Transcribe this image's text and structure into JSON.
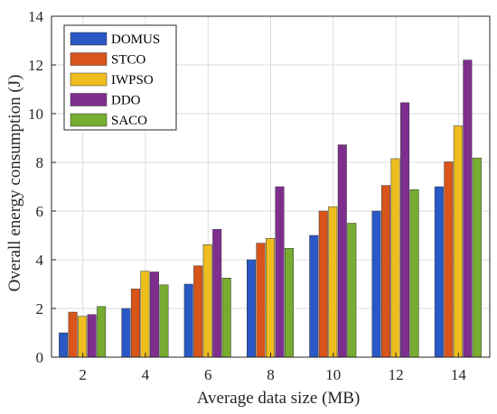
{
  "chart_data": {
    "type": "bar",
    "xlabel": "Average data size (MB)",
    "ylabel": "Overall energy consumption (J)",
    "categories": [
      "2",
      "4",
      "6",
      "8",
      "10",
      "12",
      "14"
    ],
    "ylim": [
      0,
      14
    ],
    "yticks": [
      "0",
      "2",
      "4",
      "6",
      "8",
      "10",
      "12",
      "14"
    ],
    "grid": true,
    "legend_position": "top-left",
    "series": [
      {
        "name": "DOMUS",
        "color": "#2a58c4",
        "values": [
          1.0,
          2.0,
          3.0,
          4.0,
          5.0,
          6.0,
          7.0
        ]
      },
      {
        "name": "STCO",
        "color": "#d9541a",
        "values": [
          1.85,
          2.8,
          3.75,
          4.68,
          6.0,
          7.05,
          8.02
        ]
      },
      {
        "name": "IWPSO",
        "color": "#eebd1e",
        "values": [
          1.68,
          3.53,
          4.62,
          4.88,
          6.18,
          8.15,
          9.5
        ]
      },
      {
        "name": "DDO",
        "color": "#7e2f8e",
        "values": [
          1.75,
          3.5,
          5.25,
          7.0,
          8.72,
          10.45,
          12.2
        ]
      },
      {
        "name": "SACO",
        "color": "#77ac30",
        "values": [
          2.08,
          2.97,
          3.25,
          4.47,
          5.5,
          6.88,
          8.18
        ]
      }
    ]
  }
}
